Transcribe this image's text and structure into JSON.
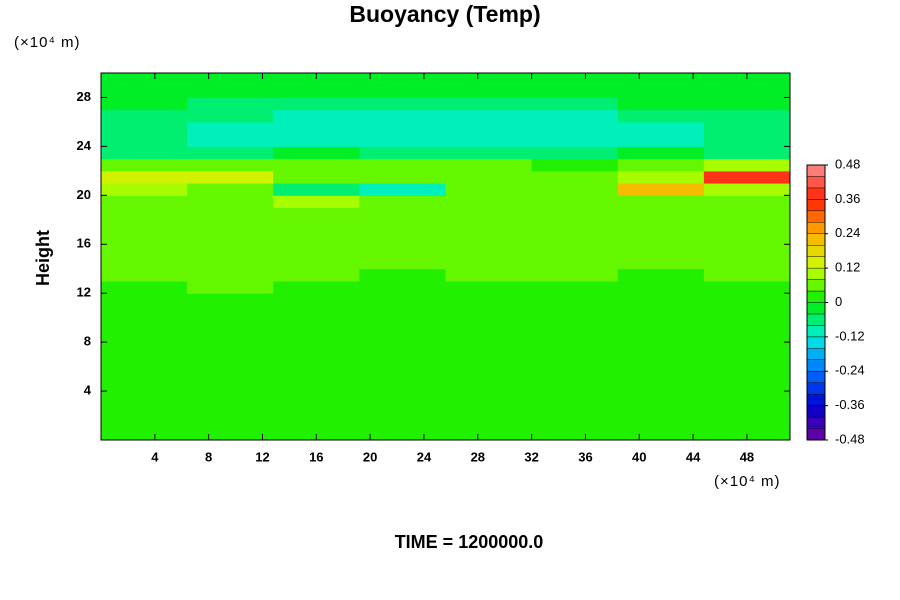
{
  "chart_data": {
    "type": "heatmap",
    "title": "Buoyancy (Temp)",
    "y_unit_label": "(×10⁴ m)",
    "x_unit_label": "(×10⁴ m)",
    "y_label": "Height",
    "footer": "TIME = 1200000.0",
    "xlim": [
      0,
      51.2
    ],
    "ylim": [
      0,
      30
    ],
    "xticks": [
      4,
      8,
      12,
      16,
      20,
      24,
      28,
      32,
      36,
      40,
      44,
      48
    ],
    "yticks": [
      4,
      8,
      12,
      16,
      20,
      24,
      28
    ],
    "clim": [
      -0.48,
      0.48
    ],
    "cticks": [
      0.48,
      0.36,
      0.24,
      0.12,
      0,
      -0.12,
      -0.24,
      -0.36,
      -0.48
    ],
    "x": [
      0,
      6.4,
      12.8,
      19.2,
      25.6,
      32,
      38.4,
      44.8,
      51.2
    ],
    "y": [
      0,
      1,
      2,
      3,
      4,
      5,
      6,
      7,
      8,
      9,
      10,
      11,
      12,
      13,
      14,
      15,
      16,
      17,
      18,
      19,
      20,
      21,
      22,
      23,
      24,
      25,
      26,
      27,
      28,
      29,
      30
    ],
    "values": [
      [
        0,
        0,
        0,
        0,
        0,
        0,
        0,
        0
      ],
      [
        0,
        0,
        0,
        0,
        0,
        0,
        0,
        0
      ],
      [
        0,
        0,
        0,
        0,
        0,
        0,
        0,
        0
      ],
      [
        0,
        0,
        0,
        0,
        0,
        0,
        0,
        0
      ],
      [
        0,
        0,
        0,
        0,
        0,
        0,
        0,
        0
      ],
      [
        0,
        0,
        0,
        0,
        0,
        0,
        0,
        0
      ],
      [
        0,
        0,
        0,
        0,
        0,
        0,
        0,
        0
      ],
      [
        0,
        0,
        0,
        0,
        0,
        0,
        0,
        0
      ],
      [
        0,
        0,
        0,
        0,
        0,
        0,
        0,
        0
      ],
      [
        0,
        0,
        0,
        0,
        0,
        0,
        0,
        0
      ],
      [
        0,
        0,
        0,
        0,
        0,
        0,
        0,
        0
      ],
      [
        0.02,
        0.02,
        0.02,
        0.02,
        0.02,
        0.02,
        0.02,
        0.02
      ],
      [
        0.02,
        0.04,
        0.02,
        0.02,
        0.02,
        0.02,
        0.02,
        0.02
      ],
      [
        0.04,
        0.04,
        0.04,
        0.02,
        0.04,
        0.04,
        0.02,
        0.04
      ],
      [
        0.04,
        0.04,
        0.04,
        0.04,
        0.04,
        0.04,
        0.04,
        0.04
      ],
      [
        0.04,
        0.04,
        0.04,
        0.04,
        0.04,
        0.04,
        0.04,
        0.04
      ],
      [
        0.04,
        0.04,
        0.04,
        0.04,
        0.04,
        0.04,
        0.04,
        0.04
      ],
      [
        0.04,
        0.04,
        0.06,
        0.04,
        0.04,
        0.04,
        0.04,
        0.04
      ],
      [
        0.04,
        0.04,
        0.06,
        0.06,
        0.04,
        0.04,
        0.04,
        0.04
      ],
      [
        0.06,
        0.08,
        0.1,
        0.08,
        0.06,
        0.06,
        0.06,
        0.06
      ],
      [
        0.1,
        0.08,
        -0.06,
        -0.12,
        0.06,
        0.08,
        0.2,
        0.1
      ],
      [
        0.12,
        0.12,
        0.08,
        0.06,
        0.06,
        0.08,
        0.1,
        0.36
      ],
      [
        0.04,
        0.04,
        0.04,
        0.04,
        0.04,
        0.02,
        0.06,
        0.1
      ],
      [
        -0.06,
        -0.06,
        -0.04,
        -0.06,
        -0.06,
        -0.06,
        -0.04,
        -0.06
      ],
      [
        -0.08,
        -0.1,
        -0.1,
        -0.1,
        -0.1,
        -0.1,
        -0.1,
        -0.08
      ],
      [
        -0.08,
        -0.1,
        -0.1,
        -0.12,
        -0.1,
        -0.1,
        -0.1,
        -0.08
      ],
      [
        -0.06,
        -0.08,
        -0.1,
        -0.1,
        -0.1,
        -0.1,
        -0.08,
        -0.06
      ],
      [
        -0.04,
        -0.06,
        -0.06,
        -0.06,
        -0.06,
        -0.06,
        -0.04,
        -0.04
      ],
      [
        -0.04,
        -0.04,
        -0.04,
        -0.04,
        -0.04,
        -0.04,
        -0.04,
        -0.04
      ],
      [
        -0.02,
        -0.04,
        -0.04,
        -0.04,
        -0.04,
        -0.04,
        -0.04,
        -0.02
      ]
    ]
  }
}
